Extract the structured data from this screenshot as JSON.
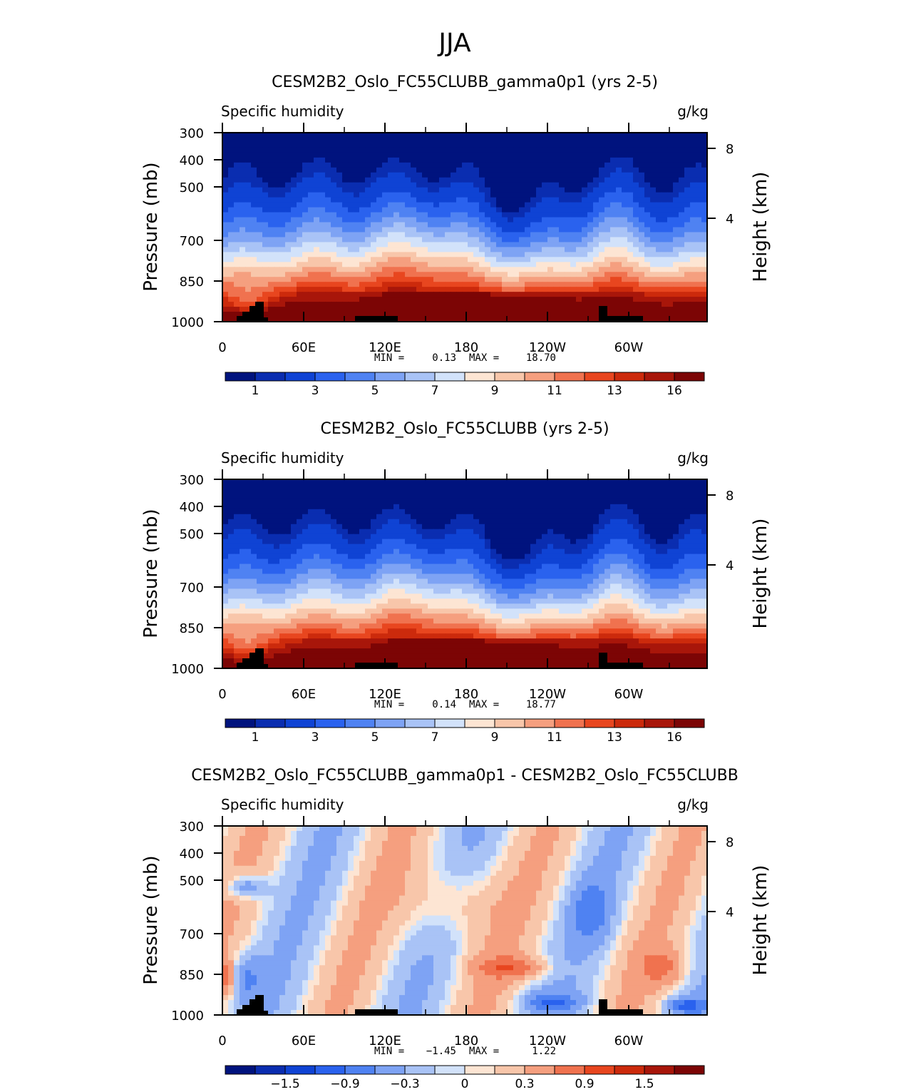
{
  "page_title": "JJA",
  "chart_data": [
    {
      "type": "heatmap",
      "title": "CESM2B2_Oslo_FC55CLUBB_gamma0p1 (yrs 2-5)",
      "left_label": "Specific humidity",
      "units": "g/kg",
      "ylabel": "Pressure (mb)",
      "ylabel_right": "Height (km)",
      "x_ticks": [
        "0",
        "60E",
        "120E",
        "180",
        "120W",
        "60W"
      ],
      "y_ticks": [
        "300",
        "400",
        "500",
        "700",
        "850",
        "1000"
      ],
      "y_ticks_right": [
        "8",
        "4"
      ],
      "min_label": "MIN =",
      "min_value": "0.13",
      "max_label": "MAX =",
      "max_value": "18.70",
      "colorbar_labels": [
        "1",
        "3",
        "5",
        "7",
        "9",
        "11",
        "13",
        "16"
      ]
    },
    {
      "type": "heatmap",
      "title": "CESM2B2_Oslo_FC55CLUBB (yrs 2-5)",
      "left_label": "Specific humidity",
      "units": "g/kg",
      "ylabel": "Pressure (mb)",
      "ylabel_right": "Height (km)",
      "x_ticks": [
        "0",
        "60E",
        "120E",
        "180",
        "120W",
        "60W"
      ],
      "y_ticks": [
        "300",
        "400",
        "500",
        "700",
        "850",
        "1000"
      ],
      "y_ticks_right": [
        "8",
        "4"
      ],
      "min_label": "MIN =",
      "min_value": "0.14",
      "max_label": "MAX =",
      "max_value": "18.77",
      "colorbar_labels": [
        "1",
        "3",
        "5",
        "7",
        "9",
        "11",
        "13",
        "16"
      ]
    },
    {
      "type": "heatmap",
      "title": "CESM2B2_Oslo_FC55CLUBB_gamma0p1 - CESM2B2_Oslo_FC55CLUBB",
      "left_label": "Specific humidity",
      "units": "g/kg",
      "ylabel": "Pressure (mb)",
      "ylabel_right": "Height (km)",
      "x_ticks": [
        "0",
        "60E",
        "120E",
        "180",
        "120W",
        "60W"
      ],
      "y_ticks": [
        "300",
        "400",
        "500",
        "700",
        "850",
        "1000"
      ],
      "y_ticks_right": [
        "8",
        "4"
      ],
      "min_label": "MIN =",
      "min_value": "−1.45",
      "max_label": "MAX =",
      "max_value": "1.22",
      "colorbar_labels": [
        "−1.5",
        "−0.9",
        "−0.3",
        "0",
        "0.3",
        "0.9",
        "1.5"
      ]
    }
  ],
  "colors": {
    "abs_palette": [
      "#00137e",
      "#0a2db0",
      "#0f43d4",
      "#2a62ee",
      "#4f82f2",
      "#7ea3f4",
      "#a9c3f6",
      "#d2e2fa",
      "#fde5d3",
      "#f8c6aa",
      "#f59f7f",
      "#f0724f",
      "#e8461f",
      "#cc2a0c",
      "#a8160a",
      "#7c0505"
    ],
    "diff_palette": [
      "#00137e",
      "#0a2db0",
      "#0f43d4",
      "#2a62ee",
      "#4f82f2",
      "#7ea3f4",
      "#a9c3f6",
      "#d2e2fa",
      "#fde5d3",
      "#f8c6aa",
      "#f59f7f",
      "#f0724f",
      "#e8461f",
      "#cc2a0c",
      "#a8160a",
      "#7c0505"
    ],
    "terrain": "#000000"
  }
}
